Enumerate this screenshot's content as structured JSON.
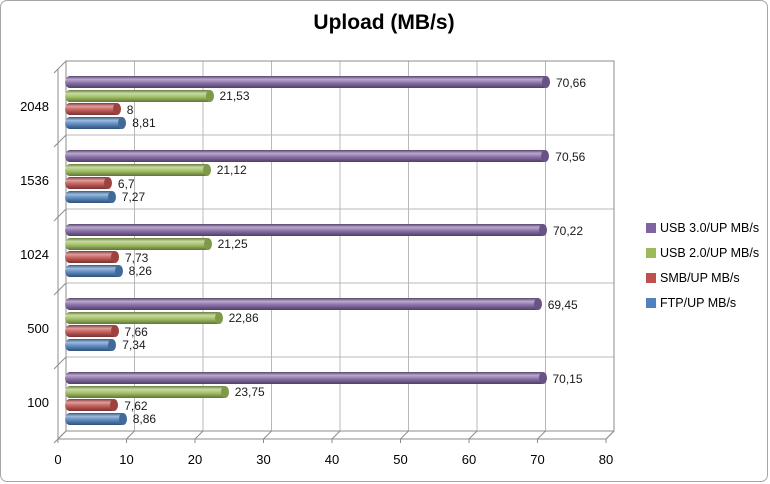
{
  "title": "Upload (MB/s)",
  "chart_data": {
    "type": "bar",
    "orientation": "horizontal",
    "style": "3d-cylinder",
    "title": "Upload (MB/s)",
    "categories": [
      "2048",
      "1536",
      "1024",
      "500",
      "100"
    ],
    "series": [
      {
        "name": "USB 3.0/UP MB/s",
        "color": "#8064A2",
        "values": [
          70.66,
          70.56,
          70.22,
          69.45,
          70.15
        ],
        "labels": [
          "70,66",
          "70,56",
          "70,22",
          "69,45",
          "70,15"
        ]
      },
      {
        "name": "USB 2.0/UP MB/s",
        "color": "#9BBB59",
        "values": [
          21.53,
          21.12,
          21.25,
          22.86,
          23.75
        ],
        "labels": [
          "21,53",
          "21,12",
          "21,25",
          "22,86",
          "23,75"
        ]
      },
      {
        "name": "SMB/UP MB/s",
        "color": "#C0504D",
        "values": [
          8,
          6.7,
          7.73,
          7.66,
          7.62
        ],
        "labels": [
          "8",
          "6,7",
          "7,73",
          "7,66",
          "7,62"
        ]
      },
      {
        "name": "FTP/UP MB/s",
        "color": "#4F81BD",
        "values": [
          8.81,
          7.27,
          8.26,
          7.34,
          8.86
        ],
        "labels": [
          "8,81",
          "7,27",
          "8,26",
          "7,34",
          "8,86"
        ]
      }
    ],
    "x_ticks": [
      "0",
      "10",
      "20",
      "30",
      "40",
      "50",
      "60",
      "70",
      "80"
    ],
    "xlim": [
      0,
      80
    ],
    "grid": true,
    "legend_position": "right",
    "colors": {
      "wall_line": "#8c8c8c",
      "gridline": "#b8b8b8",
      "background": "#ffffff"
    }
  }
}
